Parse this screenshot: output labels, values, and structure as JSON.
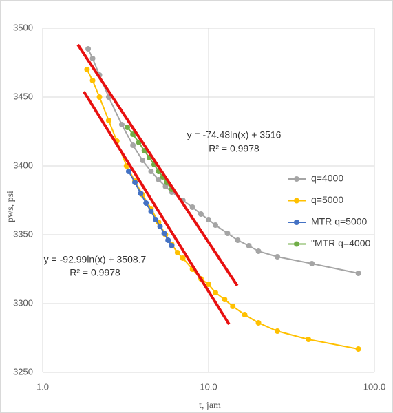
{
  "chart_data": {
    "type": "line",
    "xscale": "log",
    "grid": true,
    "legend": "right",
    "xlabel": "t,  jam",
    "ylabel": "pws,  psi",
    "xlim": [
      1,
      100
    ],
    "xticks": [
      {
        "value": 1,
        "label": "1.0"
      },
      {
        "value": 10,
        "label": "10.0"
      },
      {
        "value": 100,
        "label": "100.0"
      }
    ],
    "ylim": [
      3250,
      3500
    ],
    "yticks": [
      3250,
      3300,
      3350,
      3400,
      3450,
      3500
    ],
    "series": [
      {
        "name": "q=4000",
        "color": "#a5a5a5",
        "x": [
          1.88,
          2.0,
          2.2,
          2.5,
          3.0,
          3.5,
          4.0,
          4.5,
          5.0,
          5.5,
          6.0,
          7.0,
          8.0,
          9.0,
          10.0,
          11.0,
          13.0,
          15.0,
          17.5,
          20.0,
          26.0,
          42.0,
          80.0
        ],
        "values": [
          3485,
          3478,
          3466,
          3450,
          3430,
          3415,
          3404,
          3396,
          3390,
          3385,
          3381,
          3375,
          3370,
          3365,
          3361,
          3357,
          3351,
          3346,
          3342,
          3338,
          3334,
          3329,
          3322
        ]
      },
      {
        "name": "q=5000",
        "color": "#ffc000",
        "x": [
          1.85,
          2.0,
          2.2,
          2.5,
          2.8,
          3.2,
          3.6,
          4.0,
          4.5,
          5.0,
          5.5,
          6.0,
          6.5,
          7.0,
          8.0,
          9.0,
          10.0,
          11.0,
          12.5,
          14.0,
          16.5,
          20.0,
          26.0,
          40.0,
          80.0
        ],
        "values": [
          3470,
          3462,
          3450,
          3433,
          3418,
          3400,
          3389,
          3379,
          3369,
          3359,
          3350,
          3343,
          3337,
          3333,
          3325,
          3318,
          3314,
          3308,
          3303,
          3298,
          3292,
          3286,
          3280,
          3274,
          3267
        ]
      },
      {
        "name": "MTR q=5000",
        "color": "#4472c4",
        "x": [
          3.3,
          3.6,
          3.9,
          4.2,
          4.5,
          4.8,
          5.1,
          5.4,
          5.7,
          6.0
        ],
        "values": [
          3396,
          3388,
          3380,
          3373,
          3367,
          3361,
          3356,
          3351,
          3346,
          3342
        ]
      },
      {
        "name": "\"MTR q=4000",
        "color": "#70ad47",
        "x": [
          3.24,
          3.5,
          3.8,
          4.1,
          4.4,
          4.7,
          5.0,
          5.3,
          5.6,
          6.0
        ],
        "values": [
          3428,
          3423,
          3417,
          3411,
          3406,
          3401,
          3396,
          3392,
          3388,
          3383
        ]
      }
    ],
    "trendlines": [
      {
        "equation": "y = -74.48ln(x) + 3516",
        "r2": "R² = 0.9978",
        "color": "#e81010",
        "x": [
          1.63,
          14.9
        ],
        "values": [
          3488,
          3313
        ]
      },
      {
        "equation": "y = -92.99ln(x) + 3508.7",
        "r2": "R² = 0.9978",
        "color": "#e81010",
        "x": [
          1.77,
          13.3
        ],
        "values": [
          3454,
          3285
        ]
      }
    ]
  }
}
